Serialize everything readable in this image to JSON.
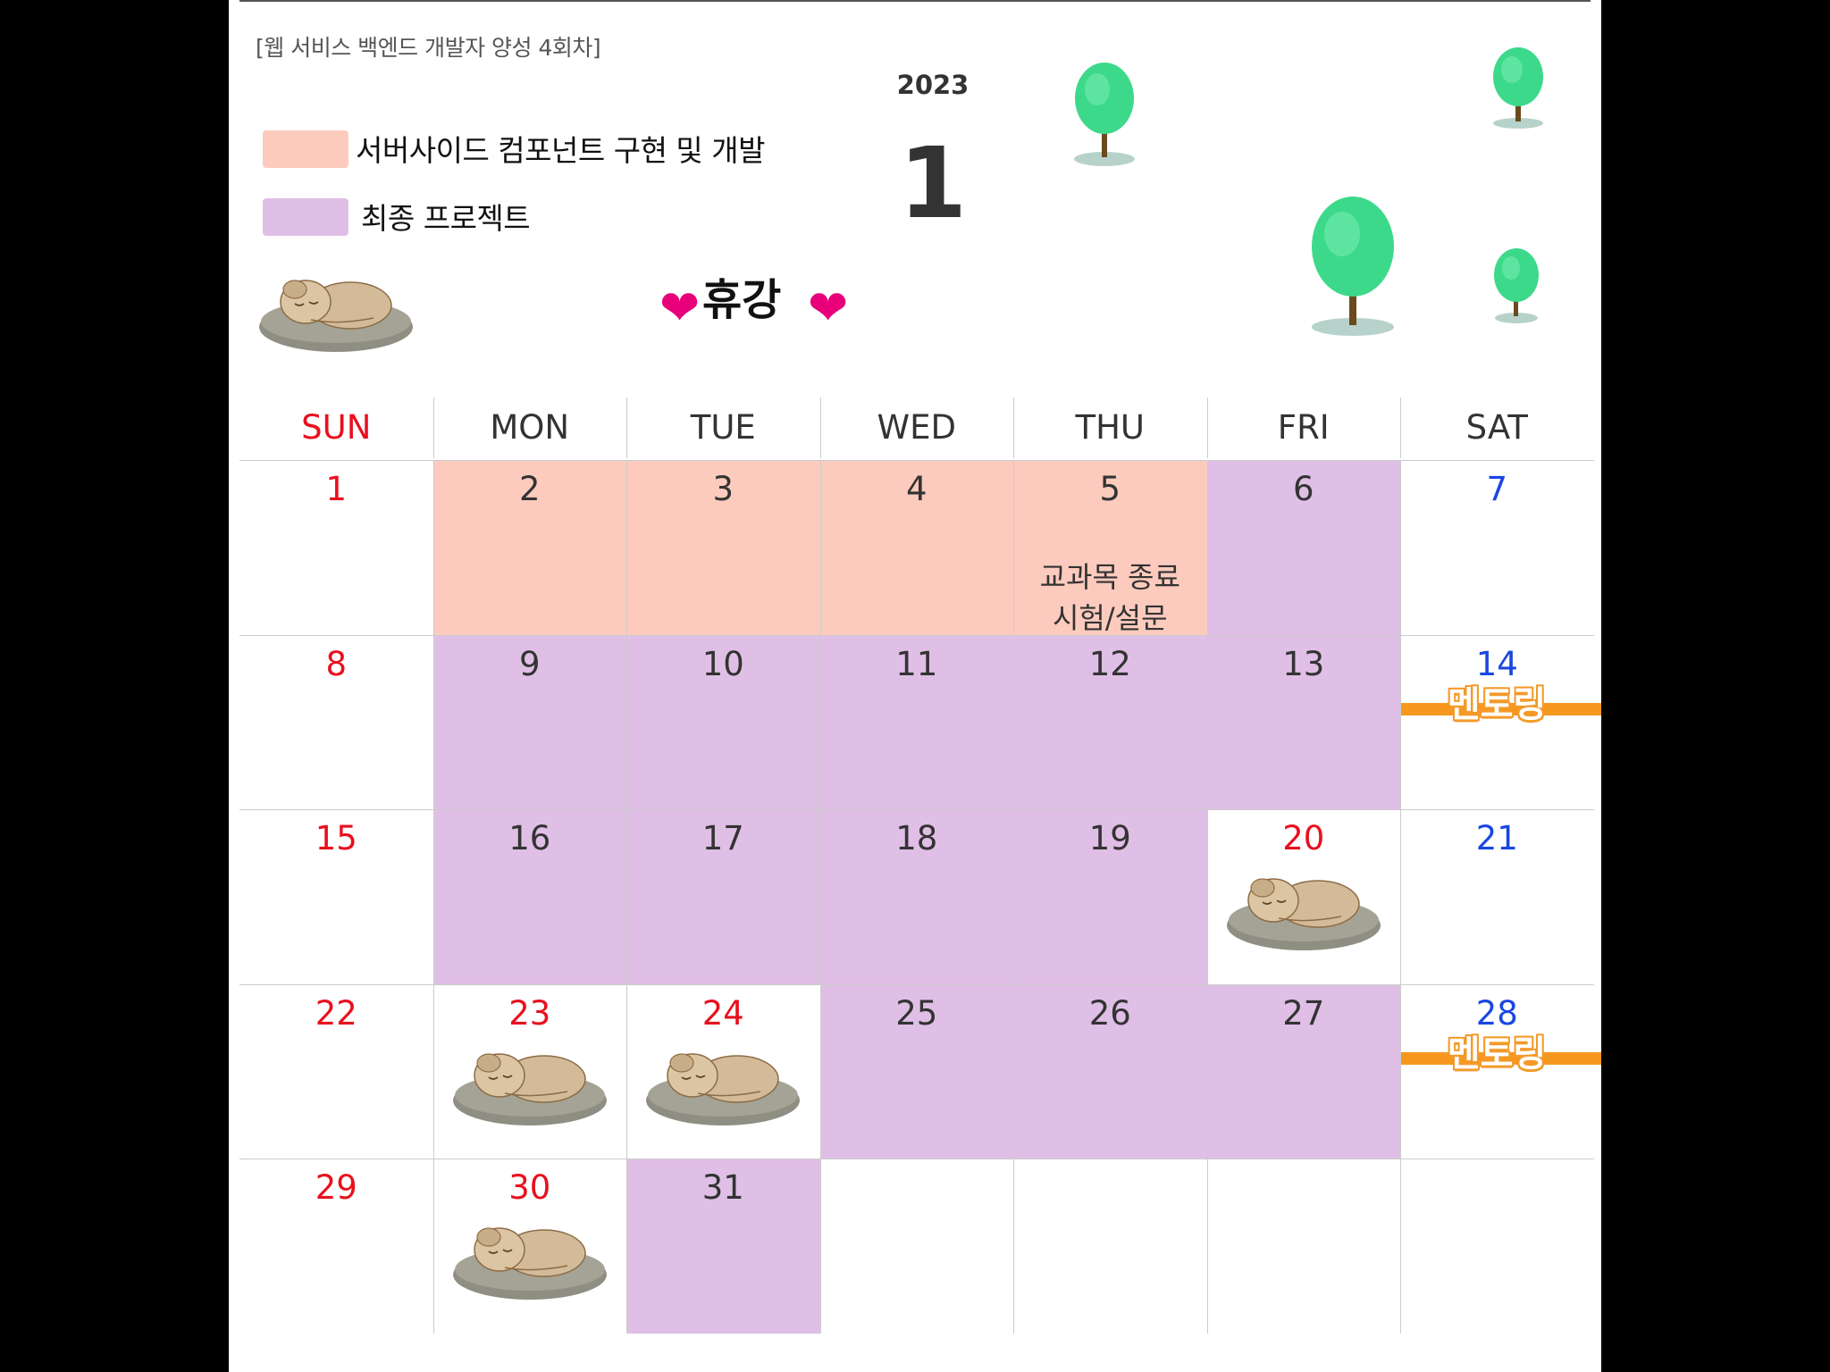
{
  "header": {
    "course_title": "[웹 서비스 백엔드 개발자 양성 4회차]",
    "year": "2023",
    "month": "1"
  },
  "legend": {
    "items": [
      {
        "label": "서버사이드 컴포넌트 구현 및 개발",
        "color": "#fccbbd"
      },
      {
        "label": "최종 프로젝트",
        "color": "#e0bfe6"
      }
    ],
    "break_label": "휴강",
    "heart_icon": "heart-icon",
    "break_icon": "sleeping-dog-icon"
  },
  "colors": {
    "component": "#fccbbd",
    "project": "#e0bfe6",
    "sunday": "#e8101e",
    "saturday": "#1a47e0",
    "weekday": "#333333",
    "holiday": "#e8101e",
    "mentoring_stripe": "#f7981e"
  },
  "calendar": {
    "weekdays": [
      "SUN",
      "MON",
      "TUE",
      "WED",
      "THU",
      "FRI",
      "SAT"
    ],
    "weeks": [
      [
        {
          "day": "1",
          "type": "none",
          "color": "sunday"
        },
        {
          "day": "2",
          "type": "component",
          "color": "weekday"
        },
        {
          "day": "3",
          "type": "component",
          "color": "weekday"
        },
        {
          "day": "4",
          "type": "component",
          "color": "weekday"
        },
        {
          "day": "5",
          "type": "component",
          "color": "weekday",
          "note": [
            "교과목 종료",
            "시험/설문"
          ]
        },
        {
          "day": "6",
          "type": "project",
          "color": "weekday"
        },
        {
          "day": "7",
          "type": "none",
          "color": "saturday"
        }
      ],
      [
        {
          "day": "8",
          "type": "none",
          "color": "sunday"
        },
        {
          "day": "9",
          "type": "project",
          "color": "weekday"
        },
        {
          "day": "10",
          "type": "project",
          "color": "weekday"
        },
        {
          "day": "11",
          "type": "project",
          "color": "weekday"
        },
        {
          "day": "12",
          "type": "project",
          "color": "weekday"
        },
        {
          "day": "13",
          "type": "project",
          "color": "weekday"
        },
        {
          "day": "14",
          "type": "none",
          "color": "saturday",
          "mentoring": "멘토링"
        }
      ],
      [
        {
          "day": "15",
          "type": "none",
          "color": "sunday"
        },
        {
          "day": "16",
          "type": "project",
          "color": "weekday"
        },
        {
          "day": "17",
          "type": "project",
          "color": "weekday"
        },
        {
          "day": "18",
          "type": "project",
          "color": "weekday"
        },
        {
          "day": "19",
          "type": "project",
          "color": "weekday"
        },
        {
          "day": "20",
          "type": "none",
          "color": "holiday",
          "break": true
        },
        {
          "day": "21",
          "type": "none",
          "color": "saturday"
        }
      ],
      [
        {
          "day": "22",
          "type": "none",
          "color": "sunday"
        },
        {
          "day": "23",
          "type": "none",
          "color": "holiday",
          "break": true
        },
        {
          "day": "24",
          "type": "none",
          "color": "holiday",
          "break": true
        },
        {
          "day": "25",
          "type": "project",
          "color": "weekday"
        },
        {
          "day": "26",
          "type": "project",
          "color": "weekday"
        },
        {
          "day": "27",
          "type": "project",
          "color": "weekday"
        },
        {
          "day": "28",
          "type": "none",
          "color": "saturday",
          "mentoring": "멘토링"
        }
      ],
      [
        {
          "day": "29",
          "type": "none",
          "color": "sunday"
        },
        {
          "day": "30",
          "type": "none",
          "color": "holiday",
          "break": true
        },
        {
          "day": "31",
          "type": "project",
          "color": "weekday"
        },
        {
          "day": "",
          "type": "none",
          "color": "weekday"
        },
        {
          "day": "",
          "type": "none",
          "color": "weekday"
        },
        {
          "day": "",
          "type": "none",
          "color": "weekday"
        },
        {
          "day": "",
          "type": "none",
          "color": "weekday"
        }
      ]
    ]
  }
}
